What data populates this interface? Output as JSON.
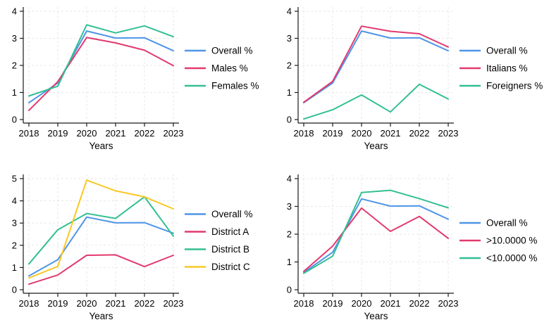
{
  "figure": {
    "background": "#ffffff",
    "grid_color": "#e7e7e7",
    "axis_color": "#1a1a1a",
    "text_color": "#000000"
  },
  "chart_data": [
    {
      "type": "line",
      "title": "",
      "xlabel": "Years",
      "ylabel": "",
      "x": [
        2018,
        2019,
        2020,
        2021,
        2022,
        2023
      ],
      "ylim": [
        0,
        4
      ],
      "yticks": [
        0,
        1,
        2,
        3,
        4
      ],
      "grid": true,
      "legend_position": "right",
      "series": [
        {
          "name": "Overall %",
          "color": "#4f95e8",
          "values": [
            0.62,
            1.35,
            3.27,
            3.01,
            3.02,
            2.54
          ]
        },
        {
          "name": "Males %",
          "color": "#e23a6e",
          "values": [
            0.34,
            1.4,
            3.03,
            2.83,
            2.56,
            1.99
          ]
        },
        {
          "name": "Females %",
          "color": "#33bf94",
          "values": [
            0.87,
            1.23,
            3.5,
            3.2,
            3.46,
            3.06
          ]
        }
      ]
    },
    {
      "type": "line",
      "title": "",
      "xlabel": "Years",
      "ylabel": "",
      "x": [
        2018,
        2019,
        2020,
        2021,
        2022,
        2023
      ],
      "ylim": [
        0,
        4
      ],
      "yticks": [
        0,
        1,
        2,
        3,
        4
      ],
      "grid": true,
      "legend_position": "right",
      "series": [
        {
          "name": "Overall %",
          "color": "#4f95e8",
          "values": [
            0.62,
            1.35,
            3.27,
            3.01,
            3.02,
            2.54
          ]
        },
        {
          "name": "Italians %",
          "color": "#e23a6e",
          "values": [
            0.64,
            1.41,
            3.45,
            3.26,
            3.17,
            2.68
          ]
        },
        {
          "name": "Foreigners %",
          "color": "#33bf94",
          "values": [
            0.02,
            0.36,
            0.91,
            0.28,
            1.3,
            0.76
          ]
        }
      ]
    },
    {
      "type": "line",
      "title": "",
      "xlabel": "Years",
      "ylabel": "",
      "x": [
        2018,
        2019,
        2020,
        2021,
        2022,
        2023
      ],
      "ylim": [
        0,
        5
      ],
      "yticks": [
        0,
        1,
        2,
        3,
        4,
        5
      ],
      "grid": true,
      "legend_position": "right",
      "series": [
        {
          "name": "Overall %",
          "color": "#4f95e8",
          "values": [
            0.62,
            1.35,
            3.27,
            3.01,
            3.02,
            2.54
          ]
        },
        {
          "name": "District A",
          "color": "#e23a6e",
          "values": [
            0.25,
            0.66,
            1.55,
            1.57,
            1.04,
            1.55
          ]
        },
        {
          "name": "District B",
          "color": "#33bf94",
          "values": [
            1.16,
            2.7,
            3.43,
            3.21,
            4.18,
            2.41
          ]
        },
        {
          "name": "District C",
          "color": "#f9c823",
          "values": [
            0.53,
            1.05,
            4.93,
            4.45,
            4.18,
            3.64
          ]
        }
      ]
    },
    {
      "type": "line",
      "title": "",
      "xlabel": "Years",
      "ylabel": "",
      "x": [
        2018,
        2019,
        2020,
        2021,
        2022,
        2023
      ],
      "ylim": [
        0,
        4
      ],
      "yticks": [
        0,
        1,
        2,
        3,
        4
      ],
      "grid": true,
      "legend_position": "right",
      "series": [
        {
          "name": "Overall %",
          "color": "#4f95e8",
          "values": [
            0.62,
            1.35,
            3.27,
            3.01,
            3.02,
            2.54
          ]
        },
        {
          "name": ">10.0000 %",
          "color": "#e23a6e",
          "values": [
            0.66,
            1.57,
            2.94,
            2.1,
            2.64,
            1.85
          ]
        },
        {
          "name": "<10.0000 %",
          "color": "#33bf94",
          "values": [
            0.59,
            1.21,
            3.5,
            3.58,
            3.28,
            2.95
          ]
        }
      ]
    }
  ]
}
